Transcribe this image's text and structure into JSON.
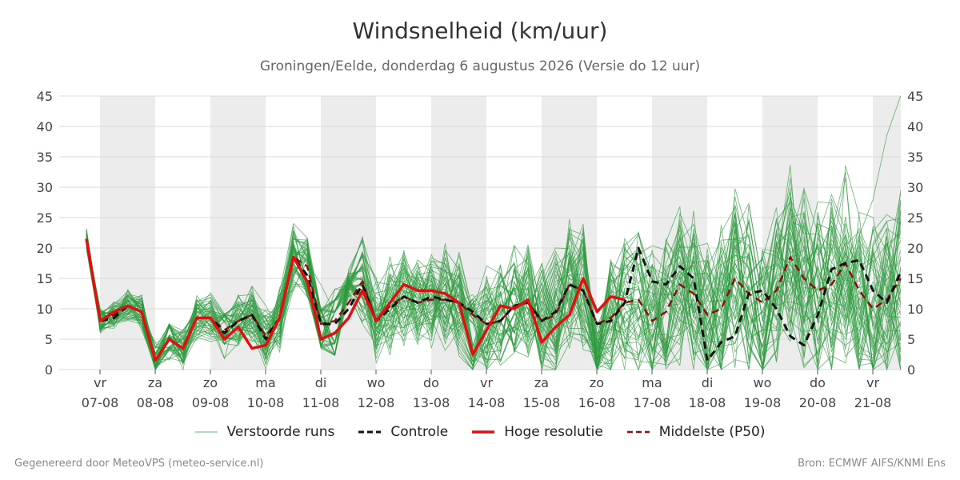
{
  "title": "Windsnelheid (km/uur)",
  "subtitle": "Groningen/Eelde, donderdag  6 augustus 2026 (Versie do 12 uur)",
  "footer_left": "Gegenereerd door MeteoVPS (meteo-service.nl)",
  "footer_right": "Bron: ECMWF AIFS/KNMI Ens",
  "legend": {
    "ensemble": "Verstoorde runs",
    "control": "Controle",
    "hires": "Hoge resolutie",
    "median": "Middelste (P50)"
  },
  "colors": {
    "ensemble": "#2e9a3f",
    "control": "#111111",
    "hires": "#e01010",
    "median": "#8b1010",
    "shade": "#ececec",
    "grid": "#d9d9d9"
  },
  "chart_data": {
    "type": "line",
    "title": "Windsnelheid (km/uur)",
    "ylim": [
      0,
      45
    ],
    "yticks": [
      0,
      5,
      10,
      15,
      20,
      25,
      30,
      35,
      40,
      45
    ],
    "x_start": 0,
    "x_end": 15.2,
    "step_days": 0.25,
    "day_ticks": [
      {
        "day": "vr",
        "date": "07-08"
      },
      {
        "day": "za",
        "date": "08-08"
      },
      {
        "day": "zo",
        "date": "09-08"
      },
      {
        "day": "ma",
        "date": "10-08"
      },
      {
        "day": "di",
        "date": "11-08"
      },
      {
        "day": "wo",
        "date": "12-08"
      },
      {
        "day": "do",
        "date": "13-08"
      },
      {
        "day": "vr",
        "date": "14-08"
      },
      {
        "day": "za",
        "date": "15-08"
      },
      {
        "day": "zo",
        "date": "16-08"
      },
      {
        "day": "ma",
        "date": "17-08"
      },
      {
        "day": "di",
        "date": "18-08"
      },
      {
        "day": "wo",
        "date": "19-08"
      },
      {
        "day": "do",
        "date": "20-08"
      },
      {
        "day": "vr",
        "date": "21-08"
      }
    ],
    "shaded_days": [
      1,
      3,
      5,
      7,
      9,
      11,
      13
    ],
    "grid": true,
    "legend_position": "bottom",
    "series": [
      {
        "name": "Controle",
        "style": "dashed",
        "values": [
          21.5,
          8.0,
          8.5,
          10.5,
          9.5,
          1.5,
          5.0,
          3.5,
          8.5,
          8.5,
          6.0,
          8.0,
          9.0,
          5.0,
          8.5,
          18.5,
          15.5,
          7.5,
          7.5,
          10.0,
          14.0,
          8.0,
          10.0,
          12.0,
          11.0,
          12.0,
          11.5,
          11.0,
          9.5,
          7.5,
          8.0,
          10.5,
          11.0,
          8.0,
          9.5,
          14.0,
          13.0,
          7.5,
          8.0,
          11.0,
          20.0,
          14.5,
          14.0,
          17.0,
          15.0,
          1.5,
          4.5,
          5.5,
          12.5,
          13.0,
          10.0,
          5.5,
          4.0,
          9.0,
          16.5,
          17.5,
          18.0,
          13.0,
          11.0,
          16.0,
          15.5
        ]
      },
      {
        "name": "Hoge resolutie",
        "style": "solid",
        "values": [
          21.5,
          8.0,
          9.5,
          10.5,
          9.5,
          1.5,
          5.0,
          3.5,
          8.5,
          8.5,
          5.0,
          7.0,
          3.5,
          4.0,
          8.5,
          18.5,
          14.5,
          5.0,
          6.0,
          8.5,
          13.0,
          8.0,
          11.0,
          14.0,
          13.0,
          13.0,
          12.5,
          11.0,
          2.5,
          6.5,
          10.5,
          10.0,
          11.5,
          4.5,
          7.0,
          9.0,
          15.0,
          9.5,
          12.0,
          11.5
        ]
      },
      {
        "name": "Middelste (P50)",
        "style": "dashed",
        "values": [
          21.5,
          8.0,
          9.0,
          10.5,
          9.5,
          1.5,
          5.0,
          3.5,
          8.5,
          8.5,
          6.5,
          8.0,
          9.0,
          5.5,
          8.5,
          18.5,
          17.0,
          7.5,
          8.0,
          11.0,
          14.5,
          8.0,
          10.5,
          12.0,
          11.0,
          11.5,
          11.5,
          11.0,
          9.0,
          7.5,
          8.0,
          10.5,
          11.0,
          8.0,
          9.0,
          14.0,
          13.0,
          7.5,
          8.5,
          11.0,
          11.5,
          8.0,
          9.5,
          14.0,
          12.5,
          9.0,
          10.0,
          15.0,
          12.5,
          11.0,
          13.0,
          18.5,
          15.0,
          13.0,
          14.0,
          17.5,
          13.0,
          10.0,
          11.5,
          15.0
        ]
      }
    ]
  }
}
